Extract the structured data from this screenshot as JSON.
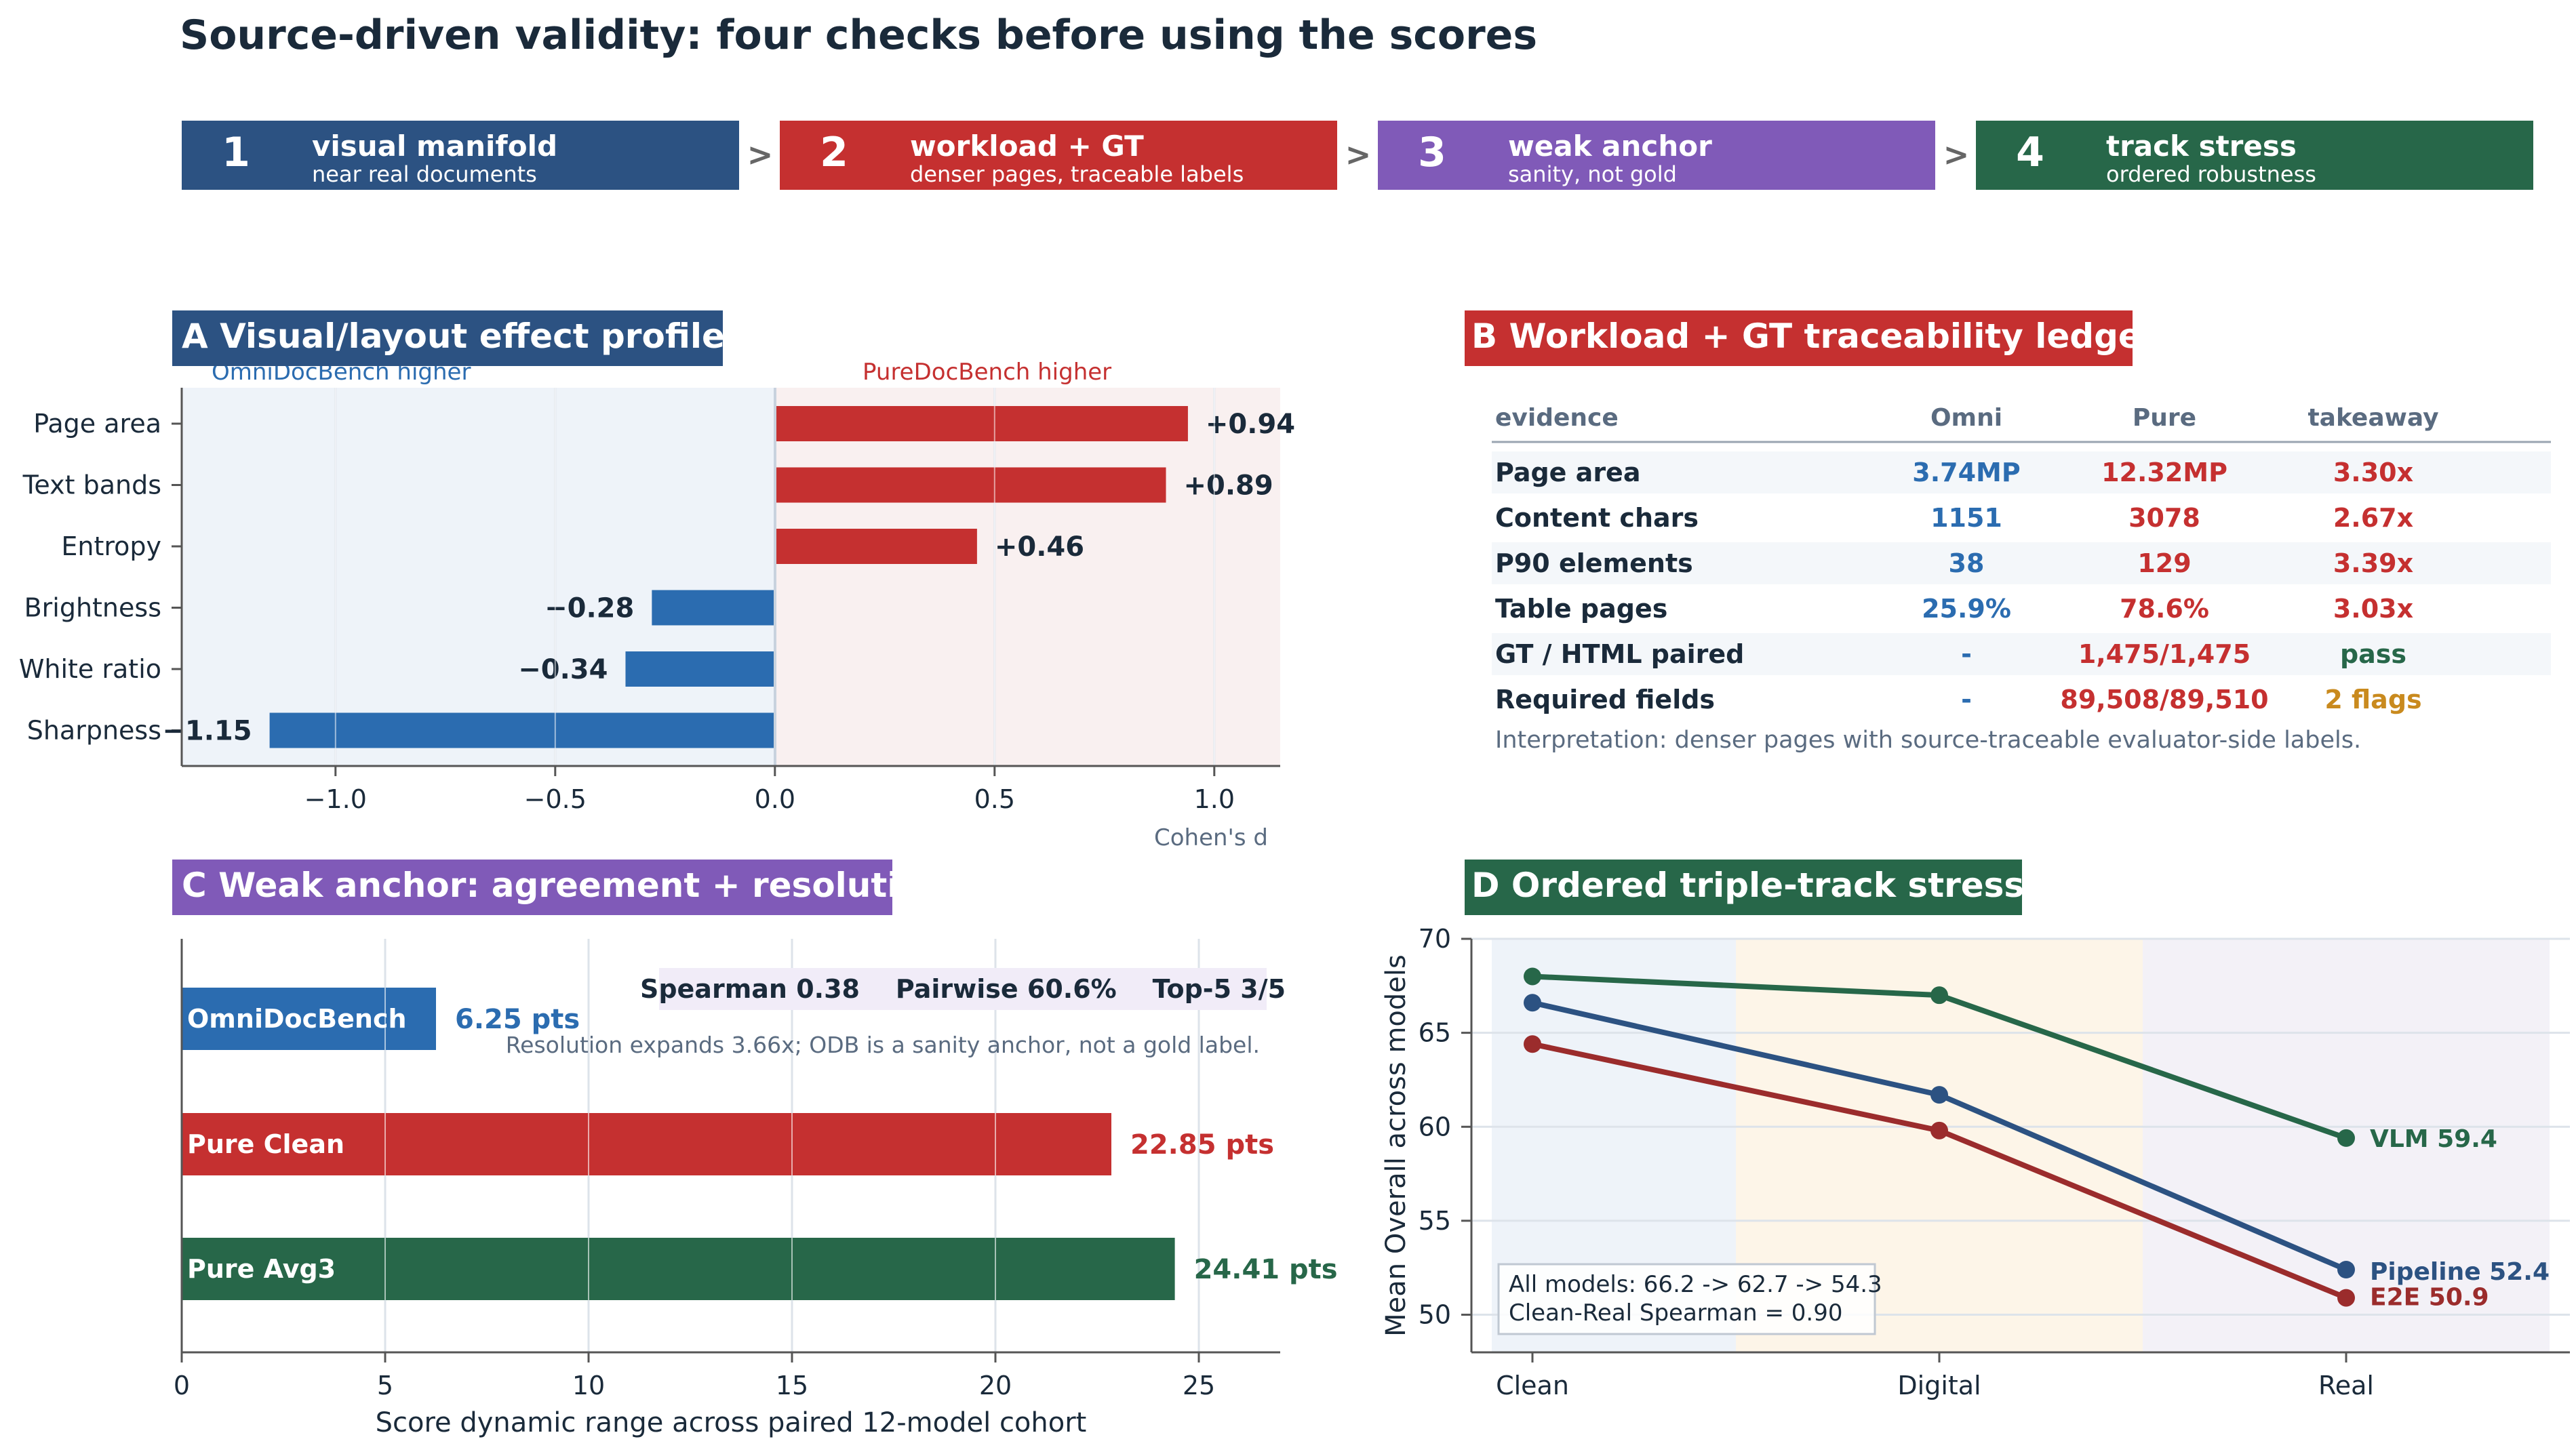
{
  "title": "Source-driven validity: four checks before using the scores",
  "steps": [
    {
      "num": "1",
      "title": "visual manifold",
      "sub": "near real documents",
      "color": "#2c5282"
    },
    {
      "num": "2",
      "title": "workload + GT",
      "sub": "denser pages, traceable labels",
      "color": "#c53030"
    },
    {
      "num": "3",
      "title": "weak anchor",
      "sub": "sanity, not gold",
      "color": "#805ab8"
    },
    {
      "num": "4",
      "title": "track stress",
      "sub": "ordered robustness",
      "color": "#276749"
    }
  ],
  "step_arrow": ">",
  "panel_a": {
    "label": "A  Visual/layout effect profile",
    "left_region": "OmniDocBench higher",
    "right_region": "PureDocBench higher",
    "xlabel": "Cohen's d",
    "xticks": [
      "−1.0",
      "−0.5",
      "0.0",
      "0.5",
      "1.0"
    ],
    "value_labels": [
      "+0.94",
      "+0.89",
      "+0.46",
      "−0.28",
      "−0.34",
      "−1.15"
    ]
  },
  "panel_b": {
    "label": "B  Workload + GT traceability ledger",
    "headers": [
      "evidence",
      "Omni",
      "Pure",
      "takeaway"
    ],
    "rows": [
      [
        "Page area",
        "3.74MP",
        "12.32MP",
        "3.30x"
      ],
      [
        "Content chars",
        "1151",
        "3078",
        "2.67x"
      ],
      [
        "P90 elements",
        "38",
        "129",
        "3.39x"
      ],
      [
        "Table pages",
        "25.9%",
        "78.6%",
        "3.03x"
      ],
      [
        "GT / HTML paired",
        "-",
        "1,475/1,475",
        "pass"
      ],
      [
        "Required fields",
        "-",
        "89,508/89,510",
        "2 flags"
      ]
    ],
    "note": "Interpretation: denser pages with source-traceable evaluator-side labels.",
    "colors": {
      "omni": "#2b6cb0",
      "pure": "#c53030",
      "pass": "#276749",
      "flag": "#c98a1e"
    }
  },
  "panel_c": {
    "label": "C  Weak anchor: agreement + resolution",
    "stats": "Spearman 0.38    Pairwise 60.6%    Top-5 3/5",
    "note": "Resolution expands 3.66x; ODB is a sanity anchor, not a gold label.",
    "xlabel": "Score dynamic range across paired 12-model cohort",
    "xticks": [
      "0",
      "5",
      "10",
      "15",
      "20",
      "25"
    ],
    "value_labels": [
      "6.25 pts",
      "22.85 pts",
      "24.41 pts"
    ]
  },
  "panel_d": {
    "label": "D  Ordered triple-track stress",
    "ylabel": "Mean Overall across models",
    "xticks": [
      "Clean",
      "Digital",
      "Real"
    ],
    "yticks": [
      "50",
      "55",
      "60",
      "65",
      "70"
    ],
    "end_labels": [
      "VLM 59.4",
      "Pipeline 52.4",
      "E2E 50.9"
    ],
    "note_line1": "All models: 66.2 -> 62.7 -> 54.3",
    "note_line2": "Clean-Real Spearman = 0.90"
  },
  "chart_data": [
    {
      "type": "bar",
      "orientation": "horizontal",
      "categories": [
        "Page area",
        "Text bands",
        "Entropy",
        "Brightness",
        "White ratio",
        "Sharpness"
      ],
      "values": [
        0.94,
        0.89,
        0.46,
        -0.28,
        -0.34,
        -1.15
      ],
      "xlabel": "Cohen's d",
      "xlim": [
        -1.35,
        1.15
      ],
      "colors": {
        "positive": "#c53030",
        "negative": "#2b6cb0"
      }
    },
    {
      "type": "table",
      "columns": [
        "evidence",
        "Omni",
        "Pure",
        "takeaway"
      ],
      "rows": [
        [
          "Page area",
          "3.74MP",
          "12.32MP",
          "3.30x"
        ],
        [
          "Content chars",
          "1151",
          "3078",
          "2.67x"
        ],
        [
          "P90 elements",
          "38",
          "129",
          "3.39x"
        ],
        [
          "Table pages",
          "25.9%",
          "78.6%",
          "3.03x"
        ],
        [
          "GT / HTML paired",
          "-",
          "1,475/1,475",
          "pass"
        ],
        [
          "Required fields",
          "-",
          "89,508/89,510",
          "2 flags"
        ]
      ]
    },
    {
      "type": "bar",
      "orientation": "horizontal",
      "categories": [
        "OmniDocBench",
        "Pure Clean",
        "Pure Avg3"
      ],
      "values": [
        6.25,
        22.85,
        24.41
      ],
      "xlabel": "Score dynamic range across paired 12-model cohort",
      "xlim": [
        0,
        27
      ],
      "colors": [
        "#2b6cb0",
        "#c53030",
        "#276749"
      ]
    },
    {
      "type": "line",
      "x": [
        "Clean",
        "Digital",
        "Real"
      ],
      "ylabel": "Mean Overall across models",
      "ylim": [
        48,
        70
      ],
      "series": [
        {
          "name": "VLM",
          "values": [
            68.0,
            67.0,
            59.4
          ],
          "color": "#276749"
        },
        {
          "name": "Pipeline",
          "values": [
            66.6,
            61.7,
            52.4
          ],
          "color": "#2c5282"
        },
        {
          "name": "E2E",
          "values": [
            64.4,
            59.8,
            50.9
          ],
          "color": "#9b2c2c"
        }
      ]
    }
  ]
}
